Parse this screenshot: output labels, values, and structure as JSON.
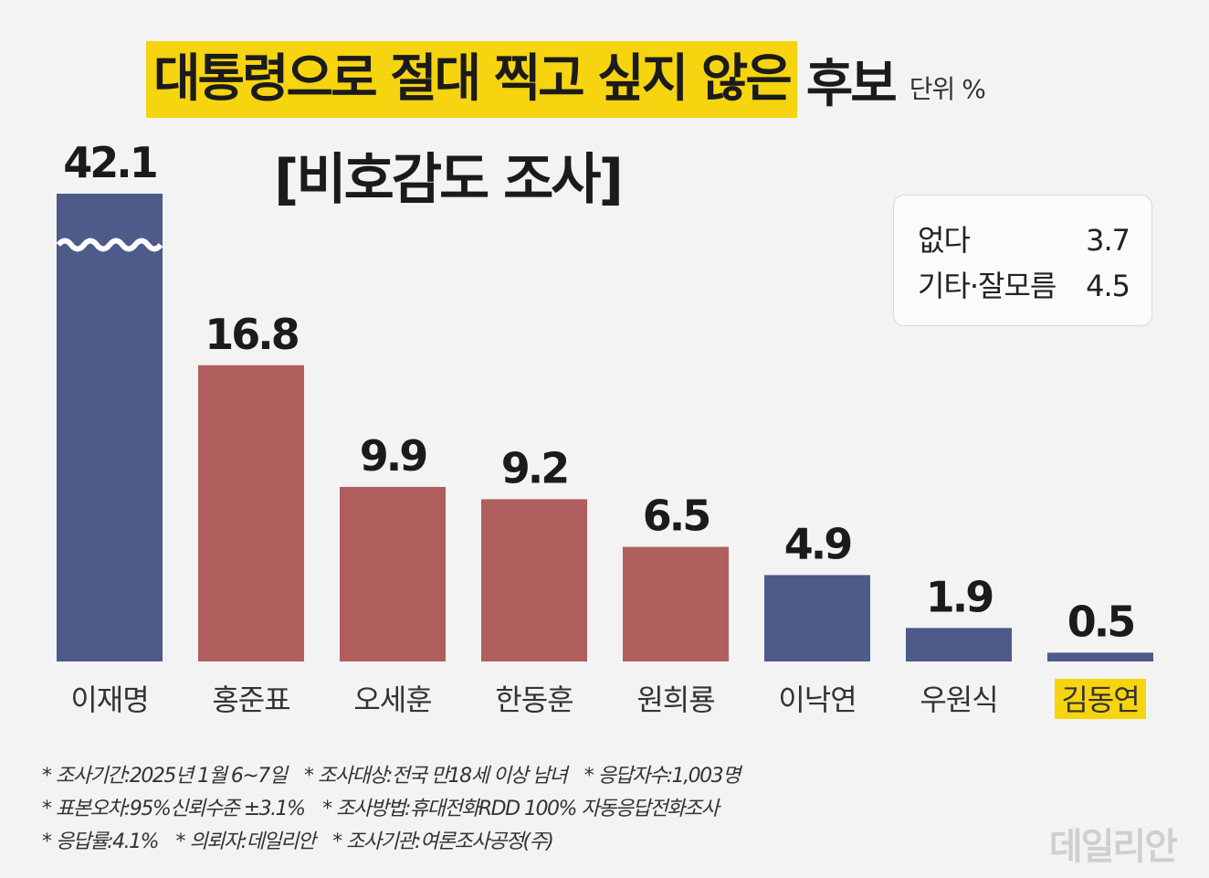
{
  "header": {
    "title_highlight": "대통령으로 절대 찍고 싶지 않은",
    "title_rest": "후보",
    "unit": "단위 %",
    "subtitle": "[비호감도 조사]"
  },
  "chart_data": {
    "type": "bar",
    "categories": [
      "이재명",
      "홍준표",
      "오세훈",
      "한동훈",
      "원희룡",
      "이낙연",
      "우원식",
      "김동연"
    ],
    "values": [
      42.1,
      16.8,
      9.9,
      9.2,
      6.5,
      4.9,
      1.9,
      0.5
    ],
    "value_labels": [
      "42.1",
      "16.8",
      "9.9",
      "9.2",
      "6.5",
      "4.9",
      "1.9",
      "0.5"
    ],
    "bar_colors": [
      "#4d5a8a",
      "#b05e5e",
      "#b05e5e",
      "#b05e5e",
      "#b05e5e",
      "#4d5a8a",
      "#4d5a8a",
      "#4d5a8a"
    ],
    "highlight_category": "김동연",
    "highlight_color": "#f6d40f",
    "first_bar_broken_axis": true,
    "grid": false
  },
  "side_box": {
    "rows": [
      {
        "label": "없다",
        "value": "3.7"
      },
      {
        "label": "기타·잘모름",
        "value": "4.5"
      }
    ]
  },
  "footnotes": [
    [
      "조사기간:2025년 1월 6~7일",
      "조사대상:전국 만18세 이상 남녀",
      "응답자수:1,003명"
    ],
    [
      "표본오차:95%신뢰수준 ±3.1%",
      "조사방법:휴대전화RDD 100% 자동응답전화조사"
    ],
    [
      "응답률:4.1%",
      "의뢰자:데일리안",
      "조사기관:여론조사공정(주)"
    ]
  ],
  "watermark": "데일리안"
}
